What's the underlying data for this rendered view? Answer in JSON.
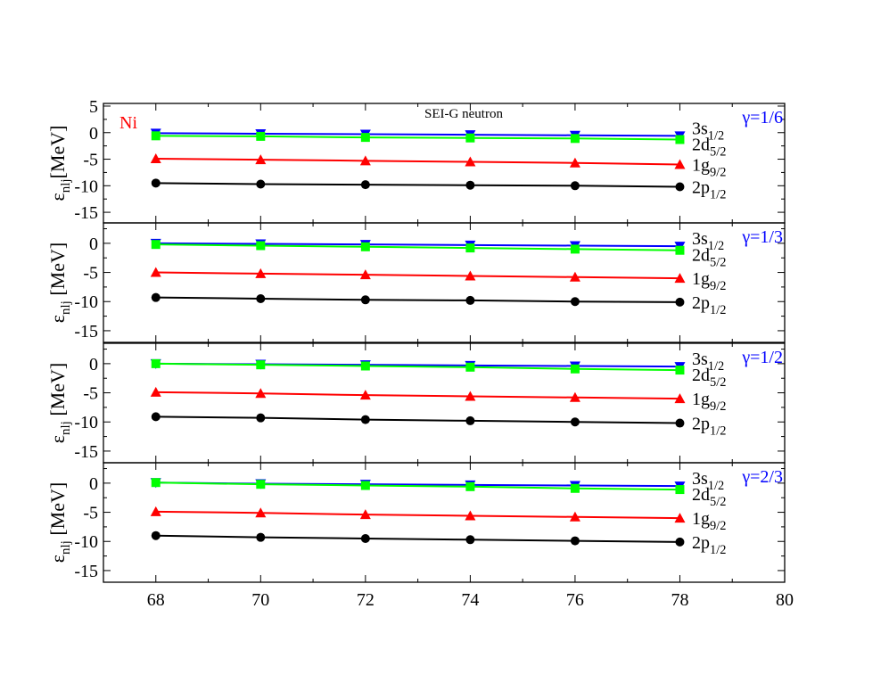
{
  "chart_data": {
    "type": "line",
    "title": "SEI-G  neutron",
    "element_label": "Ni",
    "x": [
      68,
      70,
      72,
      74,
      76,
      78
    ],
    "xlim": [
      67,
      80
    ],
    "x_ticks": [
      68,
      70,
      72,
      74,
      76,
      78,
      80
    ],
    "ylim": [
      -17,
      3.5
    ],
    "y_ticks_top_panel": [
      5,
      0,
      -5,
      -10,
      -15
    ],
    "y_ticks_other_panels": [
      0,
      -5,
      -10,
      -15
    ],
    "colors": {
      "3s1/2": "#0000ff",
      "2d5/2": "#00ff00",
      "1g9/2": "#ff0000",
      "2p1/2": "#000000",
      "element_label": "#ff0000",
      "gamma_label": "#0000ff"
    },
    "series_labels": [
      {
        "key": "3s1/2",
        "main": "3s",
        "sub": "1/2"
      },
      {
        "key": "2d5/2",
        "main": "2d",
        "sub": "5/2"
      },
      {
        "key": "1g9/2",
        "main": "1g",
        "sub": "9/2"
      },
      {
        "key": "2p1/2",
        "main": "2p",
        "sub": "1/2"
      }
    ],
    "panels": [
      {
        "gamma": "γ=1/6",
        "ylabel_main": "ε",
        "ylabel_sub": "nlj",
        "ylabel_rest": "[MeV]",
        "series": [
          {
            "key": "3s1/2",
            "marker": "triangle-down",
            "values": [
              -0.1,
              -0.2,
              -0.3,
              -0.4,
              -0.5,
              -0.6
            ]
          },
          {
            "key": "2d5/2",
            "marker": "square",
            "values": [
              -0.6,
              -0.7,
              -0.9,
              -1.0,
              -1.1,
              -1.3
            ]
          },
          {
            "key": "1g9/2",
            "marker": "triangle-up",
            "values": [
              -4.9,
              -5.1,
              -5.3,
              -5.5,
              -5.7,
              -6.0
            ]
          },
          {
            "key": "2p1/2",
            "marker": "circle",
            "values": [
              -9.5,
              -9.7,
              -9.8,
              -9.9,
              -10.0,
              -10.2
            ]
          }
        ]
      },
      {
        "gamma": "γ=1/3",
        "ylabel_main": "ε",
        "ylabel_sub": "nlj",
        "ylabel_rest": " [MeV]",
        "series": [
          {
            "key": "3s1/2",
            "marker": "triangle-down",
            "values": [
              0.0,
              -0.1,
              -0.2,
              -0.3,
              -0.4,
              -0.5
            ]
          },
          {
            "key": "2d5/2",
            "marker": "square",
            "values": [
              -0.2,
              -0.4,
              -0.6,
              -0.8,
              -1.0,
              -1.2
            ]
          },
          {
            "key": "1g9/2",
            "marker": "triangle-up",
            "values": [
              -5.0,
              -5.2,
              -5.4,
              -5.6,
              -5.8,
              -6.0
            ]
          },
          {
            "key": "2p1/2",
            "marker": "circle",
            "values": [
              -9.3,
              -9.5,
              -9.7,
              -9.8,
              -10.0,
              -10.1
            ]
          }
        ]
      },
      {
        "gamma": "γ=1/2",
        "ylabel_main": "ε",
        "ylabel_sub": "nlj",
        "ylabel_rest": " [MeV]",
        "series": [
          {
            "key": "3s1/2",
            "marker": "triangle-down",
            "values": [
              0.0,
              -0.1,
              -0.2,
              -0.3,
              -0.4,
              -0.5
            ]
          },
          {
            "key": "2d5/2",
            "marker": "square",
            "values": [
              0.0,
              -0.2,
              -0.4,
              -0.6,
              -0.9,
              -1.1
            ]
          },
          {
            "key": "1g9/2",
            "marker": "triangle-up",
            "values": [
              -4.9,
              -5.1,
              -5.4,
              -5.6,
              -5.8,
              -6.0
            ]
          },
          {
            "key": "2p1/2",
            "marker": "circle",
            "values": [
              -9.1,
              -9.3,
              -9.6,
              -9.8,
              -10.0,
              -10.2
            ]
          }
        ]
      },
      {
        "gamma": "γ=2/3",
        "ylabel_main": "ε",
        "ylabel_sub": "nlj",
        "ylabel_rest": " [MeV]",
        "series": [
          {
            "key": "3s1/2",
            "marker": "triangle-down",
            "values": [
              0.1,
              -0.1,
              -0.2,
              -0.3,
              -0.4,
              -0.5
            ]
          },
          {
            "key": "2d5/2",
            "marker": "square",
            "values": [
              0.1,
              -0.2,
              -0.4,
              -0.6,
              -0.9,
              -1.1
            ]
          },
          {
            "key": "1g9/2",
            "marker": "triangle-up",
            "values": [
              -4.9,
              -5.1,
              -5.4,
              -5.6,
              -5.8,
              -6.0
            ]
          },
          {
            "key": "2p1/2",
            "marker": "circle",
            "values": [
              -9.0,
              -9.3,
              -9.5,
              -9.7,
              -9.9,
              -10.1
            ]
          }
        ]
      }
    ]
  }
}
